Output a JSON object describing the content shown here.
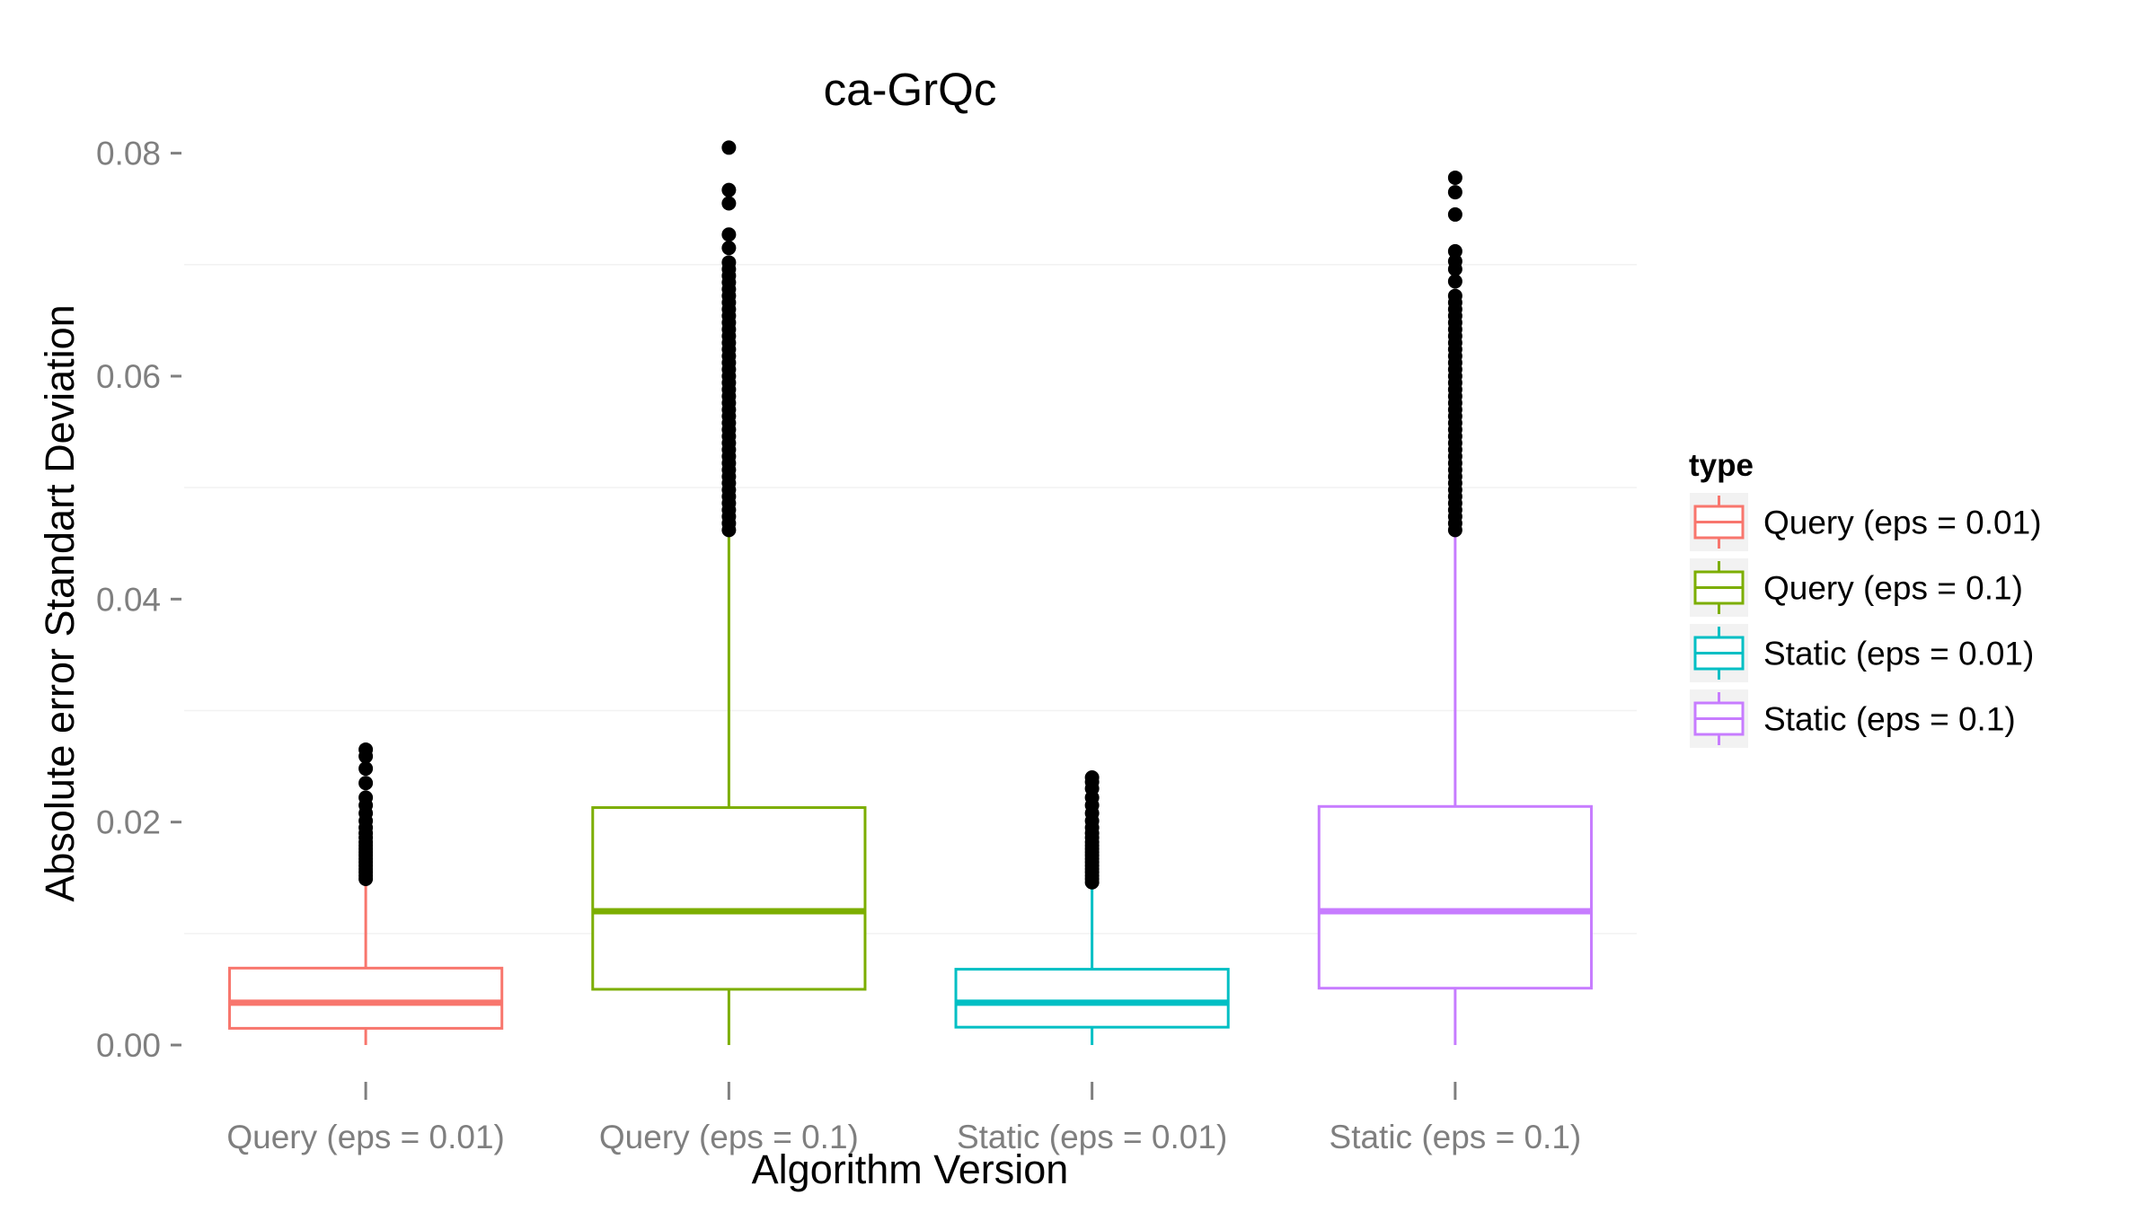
{
  "chart_data": {
    "type": "box",
    "title": "ca-GrQc",
    "xlabel": "Algorithm Version",
    "ylabel": "Absolute error Standart Deviation",
    "ylim": [
      -0.0033,
      0.0815
    ],
    "yticks": [
      0.0,
      0.02,
      0.04,
      0.06,
      0.08
    ],
    "ytick_labels": [
      "0.00",
      "0.02",
      "0.04",
      "0.06",
      "0.08"
    ],
    "grid": true,
    "legend": {
      "title": "type",
      "position": "right"
    },
    "categories": [
      "Query  (eps = 0.01)",
      "Query (eps = 0.1)",
      "Static (eps = 0.01)",
      "Static (eps = 0.1)"
    ],
    "series": [
      {
        "name": "Query  (eps = 0.01)",
        "color": "#f8766d",
        "whisker_low": 0.0,
        "q1": 0.0015,
        "median": 0.0038,
        "q3": 0.0069,
        "whisker_high": 0.0146,
        "outliers": [
          0.0149,
          0.0152,
          0.0155,
          0.0158,
          0.0161,
          0.0164,
          0.0167,
          0.017,
          0.0173,
          0.0176,
          0.0179,
          0.0182,
          0.0186,
          0.019,
          0.0195,
          0.0201,
          0.0208,
          0.0215,
          0.0222,
          0.0235,
          0.0248,
          0.0259,
          0.0265
        ]
      },
      {
        "name": "Query (eps = 0.1)",
        "color": "#7cae00",
        "whisker_low": 0.0,
        "q1": 0.005,
        "median": 0.012,
        "q3": 0.0213,
        "whisker_high": 0.0458,
        "outliers": [
          0.0462,
          0.0468,
          0.0474,
          0.048,
          0.0486,
          0.0492,
          0.0498,
          0.0504,
          0.051,
          0.0516,
          0.0522,
          0.0528,
          0.0534,
          0.054,
          0.0546,
          0.0552,
          0.0558,
          0.0564,
          0.057,
          0.0576,
          0.0582,
          0.0588,
          0.0594,
          0.06,
          0.0606,
          0.0612,
          0.0618,
          0.0624,
          0.063,
          0.0636,
          0.0642,
          0.0648,
          0.0654,
          0.066,
          0.0666,
          0.0672,
          0.0678,
          0.0684,
          0.069,
          0.0696,
          0.0702,
          0.0715,
          0.0727,
          0.0755,
          0.0767,
          0.0805
        ]
      },
      {
        "name": "Static (eps = 0.01)",
        "color": "#00bfc4",
        "whisker_low": 0.0,
        "q1": 0.0016,
        "median": 0.0038,
        "q3": 0.0068,
        "whisker_high": 0.0144,
        "outliers": [
          0.0146,
          0.0149,
          0.0152,
          0.0155,
          0.0158,
          0.0161,
          0.0164,
          0.0167,
          0.017,
          0.0173,
          0.0176,
          0.0179,
          0.0182,
          0.0186,
          0.019,
          0.0195,
          0.0201,
          0.0208,
          0.0215,
          0.0222,
          0.023,
          0.0236,
          0.024
        ]
      },
      {
        "name": "Static (eps = 0.1)",
        "color": "#c77cff",
        "whisker_low": 0.0,
        "q1": 0.0051,
        "median": 0.012,
        "q3": 0.0214,
        "whisker_high": 0.0458,
        "outliers": [
          0.0462,
          0.0468,
          0.0474,
          0.048,
          0.0486,
          0.0492,
          0.0498,
          0.0504,
          0.051,
          0.0516,
          0.0522,
          0.0528,
          0.0534,
          0.054,
          0.0546,
          0.0552,
          0.0558,
          0.0564,
          0.057,
          0.0576,
          0.0582,
          0.0588,
          0.0594,
          0.06,
          0.0606,
          0.0612,
          0.0618,
          0.0624,
          0.063,
          0.0636,
          0.0642,
          0.0648,
          0.0654,
          0.066,
          0.0666,
          0.0672,
          0.0685,
          0.0696,
          0.0703,
          0.0712,
          0.0745,
          0.0765,
          0.0778
        ]
      }
    ]
  }
}
